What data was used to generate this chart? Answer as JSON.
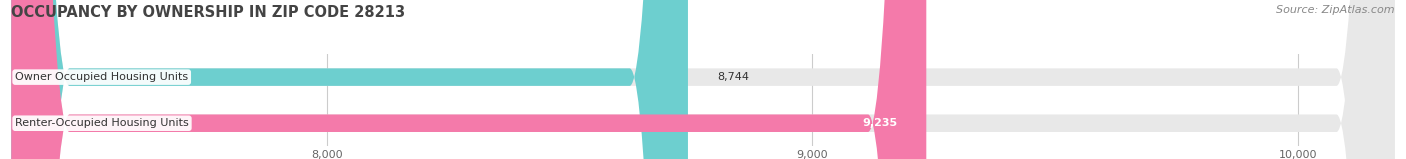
{
  "title": "OCCUPANCY BY OWNERSHIP IN ZIP CODE 28213",
  "source": "Source: ZipAtlas.com",
  "categories": [
    "Owner Occupied Housing Units",
    "Renter-Occupied Housing Units"
  ],
  "values": [
    8744,
    9235
  ],
  "bar_colors": [
    "#6dcfcf",
    "#f47aaa"
  ],
  "xlim_min": 7350,
  "xlim_max": 10200,
  "xticks": [
    8000,
    9000,
    10000
  ],
  "xtick_labels": [
    "8,000",
    "9,000",
    "10,000"
  ],
  "title_fontsize": 10.5,
  "source_fontsize": 8,
  "label_fontsize": 8,
  "value_fontsize": 8,
  "tick_fontsize": 8,
  "bar_height": 0.38,
  "background_color": "#ffffff",
  "bar_bg_color": "#e8e8e8",
  "value_label_8744_color": "#333333",
  "value_label_9235_color": "#ffffff",
  "gridline_color": "#cccccc"
}
